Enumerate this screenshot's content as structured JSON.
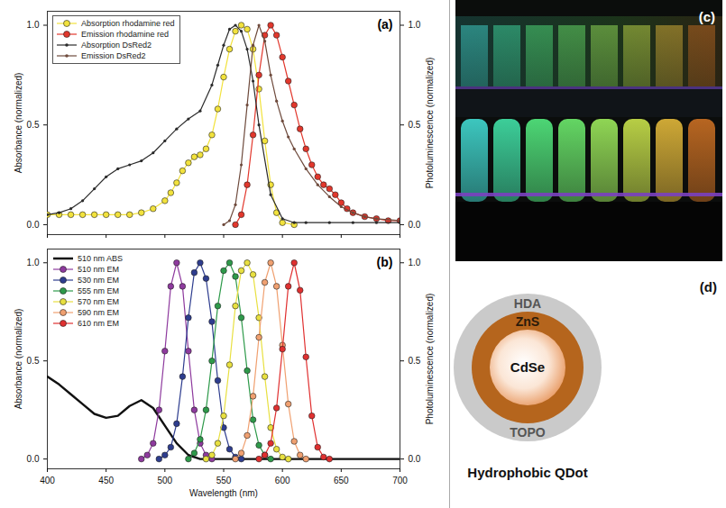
{
  "chart_data": [
    {
      "type": "line",
      "annotations": [
        "(a)"
      ],
      "xlim": [
        400,
        700
      ],
      "xticks": [
        400,
        450,
        500,
        550,
        600,
        650,
        700
      ],
      "tick_labels": "y",
      "ylim": [
        -0.05,
        1.07
      ],
      "yticks": [
        {
          "value": 0,
          "label": "0.0"
        },
        {
          "value": 0.5,
          "label": "0.5"
        },
        {
          "value": 1,
          "label": "1.0"
        }
      ],
      "ylabel": "Absorbance (normalized)",
      "y2lim": [
        -0.05,
        1.07
      ],
      "y2ticks": [
        {
          "value": 0,
          "label": "0.0"
        },
        {
          "value": 0.5,
          "label": "0.5"
        },
        {
          "value": 1,
          "label": "1.0"
        }
      ],
      "y2label": "Photoluminescence (normalized)",
      "legend": "top-left",
      "series": [
        {
          "name": "Absorption rhodamine red",
          "color": "#f2e23c",
          "marker": "circle",
          "line_style": "solid",
          "axis": "y",
          "x": [
            400,
            410,
            420,
            430,
            440,
            450,
            460,
            470,
            480,
            490,
            500,
            505,
            510,
            515,
            520,
            525,
            530,
            535,
            540,
            545,
            550,
            555,
            560,
            565,
            570,
            575,
            580,
            585,
            590,
            595,
            600,
            610
          ],
          "values": [
            0.05,
            0.05,
            0.05,
            0.05,
            0.05,
            0.05,
            0.05,
            0.05,
            0.06,
            0.08,
            0.12,
            0.16,
            0.21,
            0.27,
            0.31,
            0.34,
            0.35,
            0.38,
            0.45,
            0.58,
            0.74,
            0.88,
            0.97,
            1.0,
            0.98,
            0.88,
            0.68,
            0.42,
            0.2,
            0.06,
            0.01,
            0.0
          ]
        },
        {
          "name": "Emission rhodamine red",
          "color": "#e2372c",
          "marker": "circle",
          "line_style": "solid",
          "axis": "y2",
          "x": [
            560,
            565,
            570,
            575,
            580,
            585,
            590,
            595,
            600,
            605,
            610,
            615,
            620,
            625,
            630,
            635,
            640,
            645,
            650,
            655,
            660,
            670,
            680,
            690,
            700
          ],
          "values": [
            0.0,
            0.05,
            0.2,
            0.45,
            0.75,
            0.95,
            1.0,
            0.95,
            0.84,
            0.72,
            0.6,
            0.48,
            0.38,
            0.3,
            0.24,
            0.2,
            0.18,
            0.15,
            0.11,
            0.08,
            0.06,
            0.04,
            0.03,
            0.02,
            0.02
          ]
        },
        {
          "name": "Absorption DsRed2",
          "color": "#2b2b2b",
          "marker": "point",
          "line_style": "solid",
          "axis": "y",
          "x": [
            400,
            410,
            420,
            430,
            440,
            450,
            460,
            470,
            480,
            490,
            500,
            510,
            520,
            530,
            540,
            545,
            550,
            555,
            560,
            565,
            570,
            575,
            580,
            590,
            600,
            610,
            620,
            640,
            660,
            680,
            700
          ],
          "values": [
            0.05,
            0.06,
            0.08,
            0.12,
            0.18,
            0.24,
            0.28,
            0.3,
            0.32,
            0.36,
            0.42,
            0.48,
            0.53,
            0.57,
            0.7,
            0.8,
            0.9,
            0.98,
            1.0,
            0.97,
            0.88,
            0.72,
            0.5,
            0.15,
            0.03,
            0.01,
            0.01,
            0.01,
            0.01,
            0.01,
            0.01
          ]
        },
        {
          "name": "Emission DsRed2",
          "color": "#6e4a3c",
          "marker": "point",
          "line_style": "solid",
          "axis": "y2",
          "x": [
            550,
            555,
            560,
            565,
            570,
            575,
            580,
            585,
            590,
            595,
            600,
            605,
            610,
            620,
            630,
            640,
            650,
            660,
            670,
            680,
            700
          ],
          "values": [
            0.0,
            0.02,
            0.1,
            0.3,
            0.6,
            0.9,
            1.0,
            0.92,
            0.75,
            0.62,
            0.52,
            0.44,
            0.38,
            0.28,
            0.2,
            0.14,
            0.09,
            0.06,
            0.04,
            0.03,
            0.02
          ]
        }
      ]
    },
    {
      "type": "line",
      "annotations": [
        "(b)"
      ],
      "xlim": [
        400,
        700
      ],
      "xticks": [
        400,
        450,
        500,
        550,
        600,
        650,
        700
      ],
      "xlabel": "Wavelength (nm)",
      "ylim": [
        -0.05,
        1.07
      ],
      "yticks": [
        {
          "value": 0,
          "label": "0.0"
        },
        {
          "value": 0.5,
          "label": "0.5"
        },
        {
          "value": 1,
          "label": "1.0"
        }
      ],
      "ylabel": "Absorbance (normalized)",
      "y2lim": [
        -0.05,
        1.07
      ],
      "y2ticks": [
        {
          "value": 0,
          "label": "0.0"
        },
        {
          "value": 0.5,
          "label": "0.5"
        },
        {
          "value": 1,
          "label": "1.0"
        }
      ],
      "y2label": "Photoluminescence (normalized)",
      "legend": "top-left",
      "series": [
        {
          "name": "510 nm ABS",
          "color": "#111111",
          "marker": "none",
          "line_style": "solid",
          "axis": "y",
          "x": [
            400,
            410,
            420,
            430,
            440,
            450,
            460,
            470,
            480,
            490,
            500,
            510,
            520,
            530,
            550,
            600,
            700
          ],
          "values": [
            0.42,
            0.38,
            0.33,
            0.28,
            0.23,
            0.21,
            0.22,
            0.27,
            0.3,
            0.26,
            0.17,
            0.08,
            0.02,
            0.0,
            0.0,
            0.0,
            0.0
          ]
        },
        {
          "name": "510 nm EM",
          "color": "#8e3a9e",
          "marker": "circle",
          "line_style": "solid",
          "axis": "y2",
          "x": [
            480,
            485,
            490,
            495,
            500,
            505,
            510,
            515,
            520,
            525,
            530,
            535,
            540
          ],
          "values": [
            0,
            0.02,
            0.08,
            0.25,
            0.55,
            0.88,
            1.0,
            0.88,
            0.55,
            0.25,
            0.08,
            0.02,
            0
          ]
        },
        {
          "name": "530 nm EM",
          "color": "#2e3d8f",
          "marker": "circle",
          "line_style": "solid",
          "axis": "y2",
          "x": [
            495,
            500,
            505,
            510,
            515,
            520,
            525,
            530,
            535,
            540,
            545,
            550,
            555,
            560,
            565
          ],
          "values": [
            0,
            0.02,
            0.06,
            0.18,
            0.42,
            0.72,
            0.95,
            1.0,
            0.92,
            0.7,
            0.4,
            0.16,
            0.05,
            0.01,
            0
          ]
        },
        {
          "name": "555 nm EM",
          "color": "#2e9a4a",
          "marker": "circle",
          "line_style": "solid",
          "axis": "y2",
          "x": [
            520,
            525,
            530,
            535,
            540,
            545,
            550,
            555,
            560,
            565,
            570,
            575,
            580,
            585,
            590
          ],
          "values": [
            0,
            0.03,
            0.1,
            0.25,
            0.5,
            0.78,
            0.96,
            1.0,
            0.93,
            0.72,
            0.45,
            0.2,
            0.07,
            0.02,
            0
          ]
        },
        {
          "name": "570 nm EM",
          "color": "#e8e040",
          "marker": "circle",
          "line_style": "solid",
          "axis": "y2",
          "x": [
            535,
            540,
            545,
            550,
            555,
            560,
            565,
            570,
            575,
            580,
            585,
            590,
            595,
            600,
            605
          ],
          "values": [
            0,
            0.02,
            0.08,
            0.22,
            0.48,
            0.78,
            0.96,
            1.0,
            0.94,
            0.72,
            0.42,
            0.16,
            0.05,
            0.01,
            0
          ]
        },
        {
          "name": "590 nm EM",
          "color": "#f0a070",
          "marker": "circle",
          "line_style": "solid",
          "axis": "y2",
          "x": [
            560,
            565,
            570,
            575,
            580,
            585,
            590,
            595,
            600,
            605,
            610,
            615,
            620
          ],
          "values": [
            0,
            0.03,
            0.12,
            0.32,
            0.62,
            0.9,
            1.0,
            0.88,
            0.58,
            0.28,
            0.09,
            0.02,
            0
          ]
        },
        {
          "name": "610 nm EM",
          "color": "#e03030",
          "marker": "circle",
          "line_style": "solid",
          "axis": "y2",
          "x": [
            580,
            585,
            590,
            595,
            600,
            605,
            610,
            615,
            620,
            625,
            630,
            635,
            640
          ],
          "values": [
            0,
            0.02,
            0.08,
            0.26,
            0.56,
            0.88,
            1.0,
            0.86,
            0.52,
            0.22,
            0.06,
            0.01,
            0
          ]
        }
      ]
    }
  ],
  "photo": {
    "label": "(c)"
  },
  "diagram": {
    "label": "(d)",
    "outer_shell": [
      "HDA",
      "TOPO"
    ],
    "shell": "ZnS",
    "core": "CdSe",
    "caption": "Hydrophobic QDot"
  }
}
